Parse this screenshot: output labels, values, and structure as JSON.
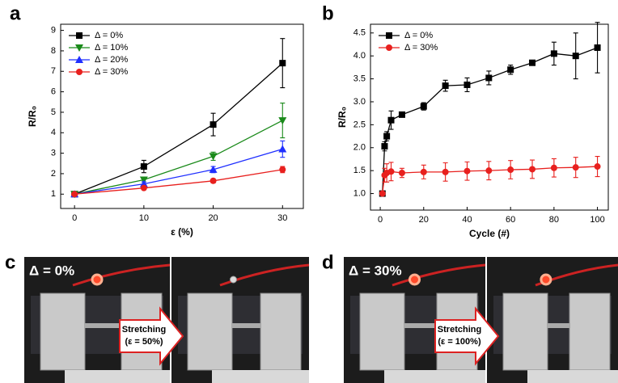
{
  "chart_data": [
    {
      "type": "line",
      "panel": "a",
      "xlabel": "ε (%)",
      "ylabel": "R/R₀",
      "x": [
        0,
        10,
        20,
        30
      ],
      "xlim": [
        -2,
        33
      ],
      "xticks": [
        0,
        10,
        20,
        30
      ],
      "ylim": [
        0.3,
        9.3
      ],
      "yticks": [
        1,
        2,
        3,
        4,
        5,
        6,
        7,
        8,
        9
      ],
      "legend": "upper left",
      "series": [
        {
          "name": "Δ = 0%",
          "color": "#000000",
          "marker": "square",
          "values": [
            1,
            2.35,
            4.4,
            7.4
          ],
          "errors": [
            0,
            0.3,
            0.55,
            1.2
          ]
        },
        {
          "name": "Δ = 10%",
          "color": "#1a8a1a",
          "marker": "triangle-down",
          "values": [
            1,
            1.7,
            2.85,
            4.6
          ],
          "errors": [
            0,
            0.1,
            0.2,
            0.85
          ]
        },
        {
          "name": "Δ = 20%",
          "color": "#1f2fff",
          "marker": "triangle-up",
          "values": [
            1,
            1.5,
            2.2,
            3.2
          ],
          "errors": [
            0,
            0.1,
            0.15,
            0.4
          ]
        },
        {
          "name": "Δ = 30%",
          "color": "#e8201e",
          "marker": "circle",
          "values": [
            1,
            1.3,
            1.65,
            2.2
          ],
          "errors": [
            0,
            0.05,
            0.1,
            0.15
          ]
        }
      ]
    },
    {
      "type": "line",
      "panel": "b",
      "xlabel": "Cycle (#)",
      "ylabel": "R/R₀",
      "x": [
        1,
        2,
        3,
        5,
        10,
        20,
        30,
        40,
        50,
        60,
        70,
        80,
        90,
        100
      ],
      "xlim": [
        -4.5,
        105
      ],
      "xticks": [
        0,
        20,
        40,
        60,
        80,
        100
      ],
      "ylim": [
        0.64,
        4.69
      ],
      "yticks": [
        {
          "value": 1,
          "label": "1.0"
        },
        {
          "value": 1.5,
          "label": "1.5"
        },
        {
          "value": 2,
          "label": "2.0"
        },
        {
          "value": 2.5,
          "label": "2.5"
        },
        {
          "value": 3,
          "label": "3.0"
        },
        {
          "value": 3.5,
          "label": "3.5"
        },
        {
          "value": 4,
          "label": "4.0"
        },
        {
          "value": 4.5,
          "label": "4.5"
        }
      ],
      "legend": "upper left",
      "series": [
        {
          "name": "Δ = 0%",
          "color": "#000000",
          "marker": "square",
          "values": [
            1,
            2.03,
            2.25,
            2.6,
            2.72,
            2.9,
            3.35,
            3.37,
            3.52,
            3.7,
            3.85,
            4.05,
            4.0,
            4.18
          ],
          "errors": [
            0,
            0.1,
            0.1,
            0.2,
            0.05,
            0.08,
            0.12,
            0.15,
            0.15,
            0.1,
            0.05,
            0.25,
            0.5,
            0.55
          ]
        },
        {
          "name": "Δ = 30%",
          "color": "#e8201e",
          "marker": "circle",
          "values": [
            1,
            1.4,
            1.45,
            1.48,
            1.45,
            1.47,
            1.47,
            1.49,
            1.5,
            1.52,
            1.53,
            1.56,
            1.57,
            1.59
          ],
          "errors": [
            0,
            0.15,
            0.2,
            0.2,
            0.1,
            0.15,
            0.2,
            0.2,
            0.2,
            0.2,
            0.2,
            0.2,
            0.22,
            0.22
          ]
        }
      ]
    }
  ],
  "photos": [
    {
      "panel": "c",
      "label": "Δ = 0%",
      "arrow": [
        "Stretching",
        "(ε = 50%)"
      ]
    },
    {
      "panel": "d",
      "label": "Δ = 30%",
      "arrow": [
        "Stretching",
        "(ε = 100%)"
      ]
    }
  ]
}
